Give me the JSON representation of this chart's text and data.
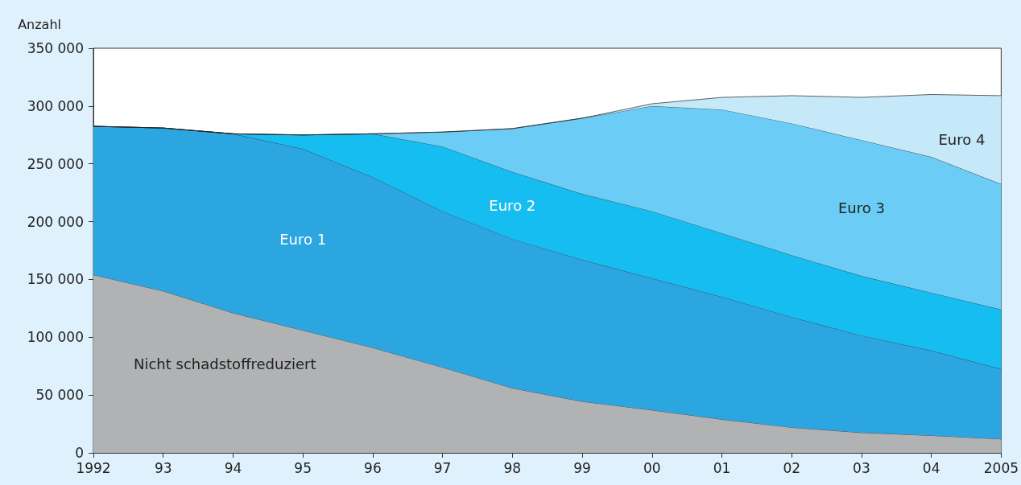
{
  "chart_data": {
    "type": "area",
    "stacked": true,
    "ylabel": "Anzahl",
    "categories": [
      "1992",
      "93",
      "94",
      "95",
      "96",
      "97",
      "98",
      "99",
      "00",
      "01",
      "02",
      "03",
      "04",
      "2005"
    ],
    "series": [
      {
        "name": "Nicht schadstoffreduziert",
        "color": "#b1b2b4",
        "values": [
          154000,
          140000,
          121000,
          106000,
          91000,
          74000,
          56000,
          44500,
          37000,
          29000,
          22000,
          17500,
          15000,
          12000
        ]
      },
      {
        "name": "Euro 1",
        "color": "#2ba6e0",
        "values": [
          128500,
          141000,
          155000,
          157000,
          147500,
          135000,
          129000,
          122500,
          114000,
          106000,
          95500,
          84000,
          73500,
          60500
        ]
      },
      {
        "name": "Euro 2",
        "color": "#16bdf0",
        "values": [
          0,
          0,
          0,
          12000,
          37500,
          56000,
          58000,
          57000,
          58000,
          55000,
          53500,
          51500,
          50000,
          51500
        ]
      },
      {
        "name": "Euro 3",
        "color": "#6bcdf5",
        "values": [
          0,
          0,
          0,
          0,
          0,
          12500,
          37500,
          65500,
          91000,
          107000,
          114000,
          117500,
          117500,
          108500
        ]
      },
      {
        "name": "Euro 4",
        "color": "#c6e9f9",
        "values": [
          0,
          0,
          0,
          0,
          0,
          0,
          0,
          0,
          2000,
          10500,
          24000,
          37000,
          54000,
          76500
        ]
      }
    ],
    "ylim": [
      0,
      350000
    ],
    "yticks": [
      0,
      {
        "value": 50000,
        "label": "50 000"
      },
      {
        "value": 100000,
        "label": "100 000"
      },
      {
        "value": 150000,
        "label": "150 000"
      },
      {
        "value": 200000,
        "label": "200 000"
      },
      {
        "value": 250000,
        "label": "250 000"
      },
      {
        "value": 300000,
        "label": "300 000"
      },
      {
        "value": 350000,
        "label": "350 000"
      }
    ],
    "grid": false,
    "legend": false
  }
}
